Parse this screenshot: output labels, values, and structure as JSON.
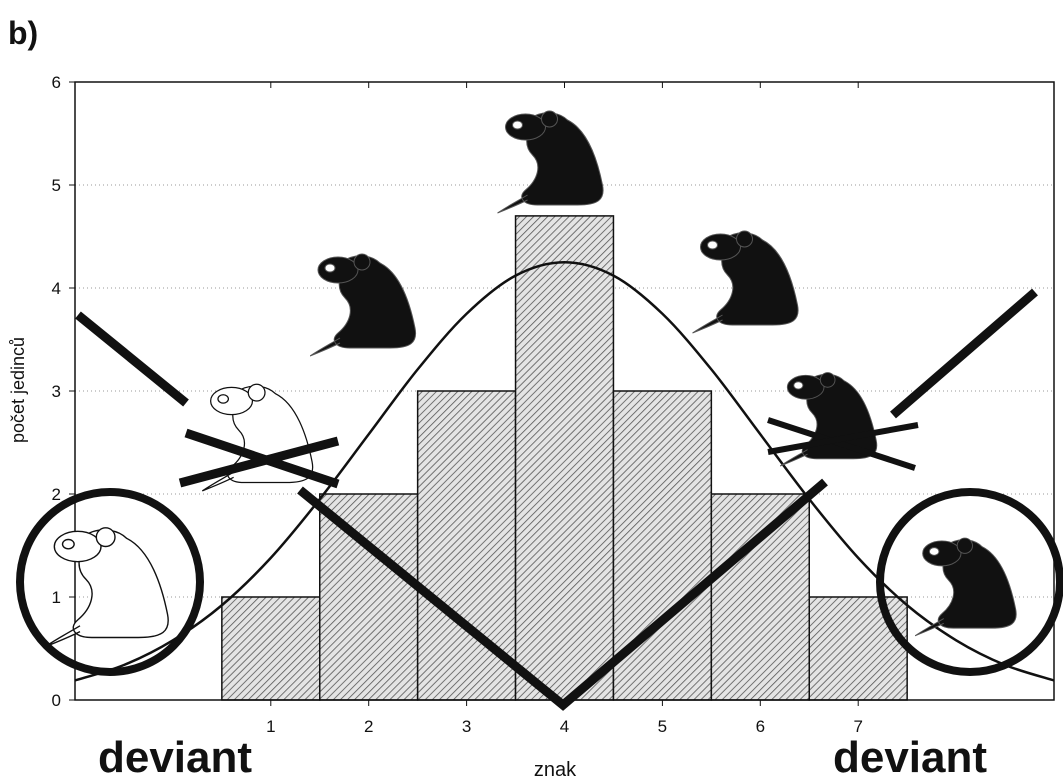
{
  "chart_data": {
    "type": "histogram",
    "title": "b)",
    "ylabel": "počet jedinců",
    "xlabel": "znak",
    "annotations": [
      "deviant",
      "deviant"
    ],
    "bins": [
      0.5,
      1.5,
      2.5,
      3.5,
      4.5,
      5.5,
      6.5,
      7.5
    ],
    "counts": [
      1,
      2,
      3,
      4.7,
      3,
      2,
      1
    ],
    "curve": {
      "x": [
        -1,
        -0.5,
        0,
        0.5,
        1,
        1.5,
        2,
        2.5,
        3,
        3.5,
        4,
        4.5,
        5,
        5.5,
        6,
        6.5,
        7,
        7.5,
        8,
        8.5,
        9
      ],
      "values": [
        0.19,
        0.34,
        0.58,
        0.92,
        1.38,
        1.95,
        2.58,
        3.21,
        3.75,
        4.12,
        4.25,
        4.12,
        3.75,
        3.21,
        2.58,
        1.95,
        1.38,
        0.92,
        0.58,
        0.34,
        0.19
      ]
    },
    "xlim": [
      -1,
      9
    ],
    "xticks": [
      1,
      2,
      3,
      4,
      5,
      6,
      7
    ],
    "ylim": [
      0,
      6
    ],
    "yticks": [
      0,
      1,
      2,
      3,
      4,
      5,
      6
    ],
    "grid": true
  }
}
